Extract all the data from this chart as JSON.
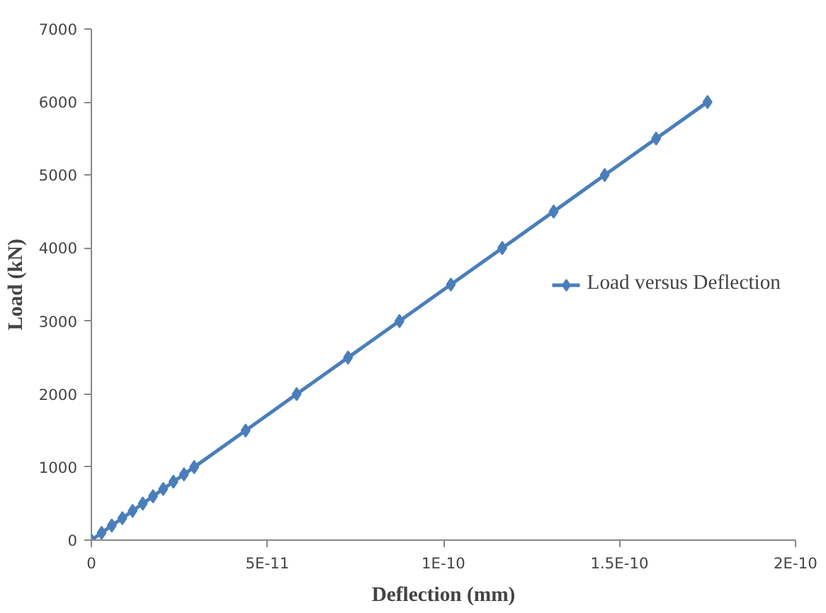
{
  "chart_data": {
    "type": "line",
    "xlabel": "Deflection (mm)",
    "ylabel": "Load (kN)",
    "x": [
      0,
      2.9e-12,
      5.8e-12,
      8.8e-12,
      1.17e-11,
      1.46e-11,
      1.75e-11,
      2.04e-11,
      2.33e-11,
      2.63e-11,
      2.92e-11,
      4.38e-11,
      5.83e-11,
      7.29e-11,
      8.75e-11,
      1.021e-10,
      1.167e-10,
      1.313e-10,
      1.458e-10,
      1.604e-10,
      1.75e-10
    ],
    "series": [
      {
        "name": "Load versus Deflection",
        "color": "#4a7ebb",
        "values": [
          0,
          100,
          200,
          300,
          400,
          500,
          600,
          700,
          800,
          900,
          1000,
          1500,
          2000,
          2500,
          3000,
          3500,
          4000,
          4500,
          5000,
          5500,
          6000
        ]
      }
    ],
    "xlim": [
      0,
      2e-10
    ],
    "xticks": [
      0,
      {
        "value": 5e-11,
        "label": "5E-11"
      },
      {
        "value": 1e-10,
        "label": "1E-10"
      },
      {
        "value": 1.5e-10,
        "label": "1.5E-10"
      },
      {
        "value": 2e-10,
        "label": "2E-10"
      }
    ],
    "ylim": [
      0,
      7000
    ],
    "yticks": [
      0,
      1000,
      2000,
      3000,
      4000,
      5000,
      6000,
      7000
    ],
    "grid": false,
    "legend": "right",
    "marker": "diamond",
    "line_style": "solid"
  }
}
